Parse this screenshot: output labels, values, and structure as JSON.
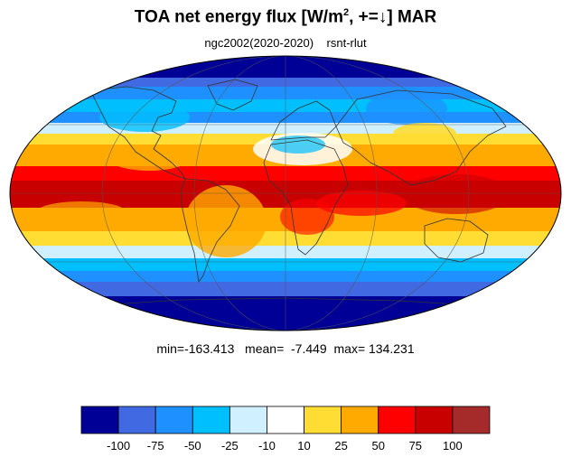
{
  "title": {
    "main": "TOA net energy flux  [W/m",
    "sup": "2",
    "tail": ", +=↓] MAR"
  },
  "subtitle": {
    "run": "ngc2002(2020-2020)",
    "variable": "rsnt-rlut"
  },
  "stats": {
    "text": "min=-163.413   mean=  -7.449  max= 134.231",
    "min": -163.413,
    "mean": -7.449,
    "max": 134.231
  },
  "projection": "mollweide",
  "colorbar": {
    "colors": [
      "#000096",
      "#4169e1",
      "#1e90ff",
      "#00bfff",
      "#d0f0ff",
      "#ffffff",
      "#ffdd33",
      "#ffaa00",
      "#ff0000",
      "#c80000",
      "#a52a2a"
    ],
    "ticks": [
      "-100",
      "-75",
      "-50",
      "-25",
      "-10",
      "10",
      "25",
      "50",
      "75",
      "100"
    ]
  }
}
